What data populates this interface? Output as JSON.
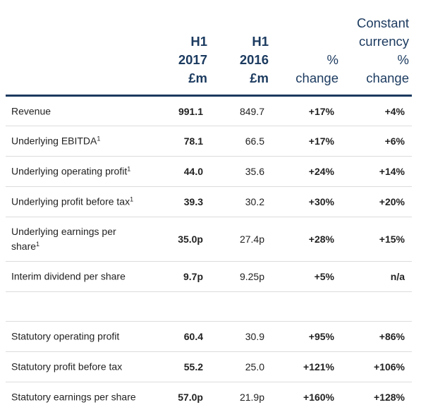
{
  "header": {
    "col1": "H1\n2017\n£m",
    "col2": "H1\n2016\n£m",
    "col3": "%\nchange",
    "col4": "Constant\ncurrency\n%\nchange"
  },
  "rows": [
    {
      "label": "Revenue",
      "sup": "",
      "h1_2017": "991.1",
      "h1_2016": "849.7",
      "change": "+17%",
      "cc_change": "+4%"
    },
    {
      "label": "Underlying EBITDA",
      "sup": "1",
      "h1_2017": "78.1",
      "h1_2016": "66.5",
      "change": "+17%",
      "cc_change": "+6%"
    },
    {
      "label": "Underlying operating profit",
      "sup": "1",
      "h1_2017": "44.0",
      "h1_2016": "35.6",
      "change": "+24%",
      "cc_change": "+14%"
    },
    {
      "label": "Underlying profit before tax",
      "sup": "1",
      "h1_2017": "39.3",
      "h1_2016": "30.2",
      "change": "+30%",
      "cc_change": "+20%"
    },
    {
      "label": "Underlying earnings per share",
      "sup": "1",
      "h1_2017": "35.0p",
      "h1_2016": "27.4p",
      "change": "+28%",
      "cc_change": "+15%"
    },
    {
      "label": "Interim dividend per share",
      "sup": "",
      "h1_2017": "9.7p",
      "h1_2016": "9.25p",
      "change": "+5%",
      "cc_change": "n/a"
    },
    {
      "label": "Statutory operating profit",
      "sup": "",
      "h1_2017": "60.4",
      "h1_2016": "30.9",
      "change": "+95%",
      "cc_change": "+86%"
    },
    {
      "label": "Statutory profit before tax",
      "sup": "",
      "h1_2017": "55.2",
      "h1_2016": "25.0",
      "change": "+121%",
      "cc_change": "+106%"
    },
    {
      "label": "Statutory earnings per share",
      "sup": "",
      "h1_2017": "57.0p",
      "h1_2016": "21.9p",
      "change": "+160%",
      "cc_change": "+128%"
    }
  ],
  "colors": {
    "header_text": "#1b3a5f",
    "rule": "#1b3a5f",
    "row_divider": "#dcdcdc"
  }
}
